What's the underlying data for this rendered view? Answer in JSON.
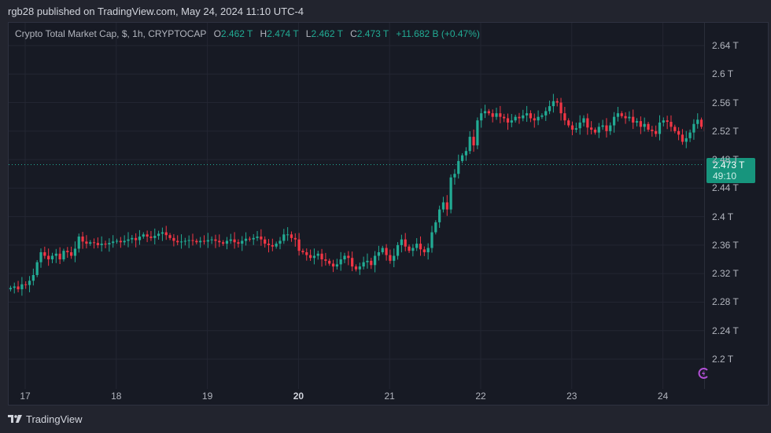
{
  "publish_line": "rgb28 published on TradingView.com, May 24, 2024 11:10 UTC-4",
  "legend": {
    "symbol": "Crypto Total Market Cap, $, 1h, CRYPTOCAP",
    "o_label": "O",
    "o_value": "2.462 T",
    "h_label": "H",
    "h_value": "2.474 T",
    "l_label": "L",
    "l_value": "2.462 T",
    "c_label": "C",
    "c_value": "2.473 T",
    "change": "+11.682 B (+0.47%)"
  },
  "last_price": {
    "value": "2.473 T",
    "countdown": "49:10"
  },
  "footer": {
    "brand": "TradingView"
  },
  "colors": {
    "up": "#22ab94",
    "down": "#f23645",
    "background": "#171a24",
    "grid": "#232632",
    "axis_text": "#b2b5be",
    "last_price_bg": "#17957d"
  },
  "chart_data": {
    "type": "candlestick",
    "title": "Crypto Total Market Cap, $, 1h, CRYPTOCAP",
    "xlabel": "",
    "ylabel": "",
    "unit": "T USD",
    "ylim": [
      2.18,
      2.66
    ],
    "yticks": [
      "2.2 T",
      "2.24 T",
      "2.28 T",
      "2.32 T",
      "2.36 T",
      "2.4 T",
      "2.44 T",
      "2.48 T",
      "2.52 T",
      "2.56 T",
      "2.6 T",
      "2.64 T"
    ],
    "ytick_values": [
      2.2,
      2.24,
      2.28,
      2.32,
      2.36,
      2.4,
      2.44,
      2.48,
      2.52,
      2.56,
      2.6,
      2.64
    ],
    "xticks": [
      "17",
      "18",
      "19",
      "20",
      "21",
      "22",
      "23",
      "24"
    ],
    "grid": true,
    "last_close": 2.473,
    "waypoints_note": "approximate hourly closes read from chart",
    "closes": [
      2.3,
      2.302,
      2.298,
      2.305,
      2.304,
      2.31,
      2.318,
      2.336,
      2.35,
      2.345,
      2.34,
      2.345,
      2.348,
      2.34,
      2.352,
      2.35,
      2.345,
      2.355,
      2.372,
      2.365,
      2.362,
      2.364,
      2.363,
      2.36,
      2.362,
      2.361,
      2.363,
      2.365,
      2.366,
      2.364,
      2.366,
      2.368,
      2.37,
      2.367,
      2.372,
      2.375,
      2.372,
      2.37,
      2.373,
      2.376,
      2.378,
      2.374,
      2.37,
      2.366,
      2.364,
      2.365,
      2.366,
      2.367,
      2.366,
      2.364,
      2.366,
      2.365,
      2.367,
      2.368,
      2.366,
      2.364,
      2.362,
      2.366,
      2.368,
      2.364,
      2.362,
      2.366,
      2.369,
      2.368,
      2.37,
      2.372,
      2.368,
      2.362,
      2.36,
      2.358,
      2.362,
      2.366,
      2.375,
      2.375,
      2.37,
      2.368,
      2.352,
      2.35,
      2.346,
      2.342,
      2.345,
      2.348,
      2.34,
      2.338,
      2.334,
      2.33,
      2.333,
      2.34,
      2.345,
      2.342,
      2.33,
      2.326,
      2.33,
      2.336,
      2.338,
      2.332,
      2.345,
      2.35,
      2.356,
      2.346,
      2.338,
      2.345,
      2.36,
      2.368,
      2.358,
      2.352,
      2.356,
      2.362,
      2.354,
      2.35,
      2.356,
      2.378,
      2.392,
      2.41,
      2.42,
      2.41,
      2.455,
      2.46,
      2.478,
      2.486,
      2.492,
      2.512,
      2.5,
      2.535,
      2.545,
      2.548,
      2.545,
      2.54,
      2.545,
      2.54,
      2.538,
      2.532,
      2.535,
      2.54,
      2.538,
      2.542,
      2.545,
      2.538,
      2.535,
      2.54,
      2.542,
      2.548,
      2.555,
      2.562,
      2.56,
      2.545,
      2.535,
      2.528,
      2.522,
      2.524,
      2.532,
      2.538,
      2.525,
      2.522,
      2.518,
      2.526,
      2.528,
      2.52,
      2.528,
      2.54,
      2.545,
      2.541,
      2.538,
      2.54,
      2.532,
      2.534,
      2.526,
      2.53,
      2.522,
      2.52,
      2.516,
      2.532,
      2.535,
      2.533,
      2.526,
      2.52,
      2.515,
      2.505,
      2.51,
      2.518,
      2.53,
      2.536,
      2.526,
      2.52,
      2.515,
      2.515,
      2.52,
      2.526,
      2.521,
      2.514,
      2.51,
      2.516,
      2.52,
      2.518,
      2.52,
      2.522,
      2.525,
      2.52,
      2.515,
      2.52,
      2.526,
      2.528,
      2.525,
      2.522,
      2.53,
      2.532,
      2.528,
      2.546,
      2.512,
      2.488,
      2.47,
      2.478,
      2.485,
      2.476,
      2.468,
      2.462,
      2.455,
      2.45,
      2.458,
      2.466,
      2.478,
      2.485,
      2.48,
      2.476,
      2.48,
      2.475,
      2.482,
      2.484,
      2.48,
      2.478,
      2.466,
      2.45,
      2.44,
      2.432,
      2.436,
      2.44,
      2.432,
      2.446,
      2.45,
      2.452,
      2.45,
      2.454,
      2.44,
      2.462,
      2.473
    ]
  }
}
